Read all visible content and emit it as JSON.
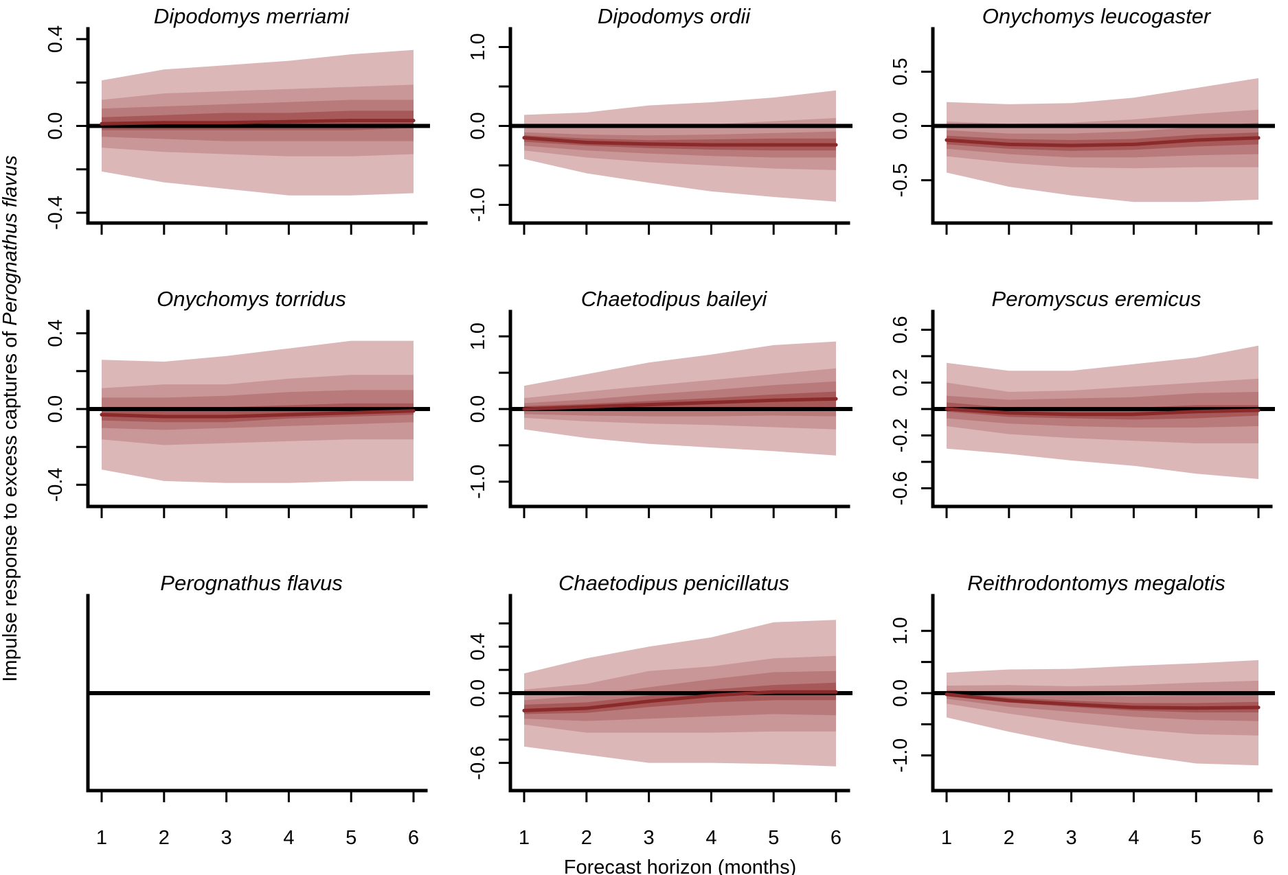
{
  "chart_data": {
    "type": "area",
    "layout": {
      "rows": 3,
      "cols": 3
    },
    "xlabel": "Forecast horizon (months)",
    "ylabel_prefix": "Impulse response to excess captures of ",
    "ylabel_species": "Perognathus flavus",
    "x": [
      1,
      2,
      3,
      4,
      5,
      6
    ],
    "xticks": [
      "1",
      "2",
      "3",
      "4",
      "5",
      "6"
    ],
    "colors": {
      "median": "#8b2a2a",
      "band_outer": "#dcb7b7",
      "band_2": "#c99797",
      "band_3": "#b87a7a",
      "band_inner": "#a75858"
    },
    "panels": [
      {
        "title": "Dipodomys merriami",
        "ylim": [
          -0.4,
          0.4
        ],
        "yticks": [
          -0.4,
          -0.2,
          0.0,
          0.2,
          0.4
        ],
        "yticklabels": [
          "-0.4",
          "",
          "0.0",
          "",
          "0.4"
        ],
        "median": [
          0.01,
          0.015,
          0.015,
          0.02,
          0.025,
          0.025
        ],
        "bands": [
          {
            "lower": [
              -0.21,
              -0.26,
              -0.29,
              -0.32,
              -0.32,
              -0.31
            ],
            "upper": [
              0.21,
              0.26,
              0.28,
              0.3,
              0.33,
              0.35
            ]
          },
          {
            "lower": [
              -0.1,
              -0.12,
              -0.13,
              -0.14,
              -0.14,
              -0.13
            ],
            "upper": [
              0.12,
              0.15,
              0.16,
              0.17,
              0.18,
              0.19
            ]
          },
          {
            "lower": [
              -0.05,
              -0.06,
              -0.07,
              -0.07,
              -0.07,
              -0.07
            ],
            "upper": [
              0.08,
              0.09,
              0.1,
              0.11,
              0.12,
              0.12
            ]
          },
          {
            "lower": [
              -0.02,
              -0.02,
              -0.02,
              -0.02,
              -0.02,
              -0.01
            ],
            "upper": [
              0.04,
              0.05,
              0.06,
              0.06,
              0.07,
              0.07
            ]
          }
        ]
      },
      {
        "title": "Dipodomys ordii",
        "ylim": [
          -1.1,
          1.1
        ],
        "yticks": [
          -1.0,
          -0.5,
          0.0,
          0.5,
          1.0
        ],
        "yticklabels": [
          "-1.0",
          "",
          "0.0",
          "",
          "1.0"
        ],
        "median": [
          -0.15,
          -0.21,
          -0.23,
          -0.24,
          -0.24,
          -0.24
        ],
        "bands": [
          {
            "lower": [
              -0.42,
              -0.6,
              -0.72,
              -0.83,
              -0.9,
              -0.96
            ],
            "upper": [
              0.14,
              0.17,
              0.26,
              0.3,
              0.36,
              0.45
            ]
          },
          {
            "lower": [
              -0.31,
              -0.4,
              -0.46,
              -0.5,
              -0.54,
              -0.56
            ],
            "upper": [
              0.0,
              -0.02,
              -0.02,
              0.02,
              0.06,
              0.1
            ]
          },
          {
            "lower": [
              -0.25,
              -0.31,
              -0.35,
              -0.38,
              -0.4,
              -0.4
            ],
            "upper": [
              -0.08,
              -0.11,
              -0.12,
              -0.11,
              -0.09,
              -0.07
            ]
          },
          {
            "lower": [
              -0.2,
              -0.25,
              -0.28,
              -0.3,
              -0.31,
              -0.31
            ],
            "upper": [
              -0.12,
              -0.16,
              -0.18,
              -0.17,
              -0.16,
              -0.16
            ]
          }
        ]
      },
      {
        "title": "Onychomys leucogaster",
        "ylim": [
          -0.8,
          0.8
        ],
        "yticks": [
          -0.5,
          0.0,
          0.5
        ],
        "yticklabels": [
          "-0.5",
          "0.0",
          "0.5"
        ],
        "median": [
          -0.13,
          -0.17,
          -0.18,
          -0.17,
          -0.13,
          -0.11
        ],
        "bands": [
          {
            "lower": [
              -0.43,
              -0.56,
              -0.64,
              -0.7,
              -0.7,
              -0.68
            ],
            "upper": [
              0.22,
              0.2,
              0.21,
              0.26,
              0.35,
              0.44
            ]
          },
          {
            "lower": [
              -0.28,
              -0.34,
              -0.38,
              -0.39,
              -0.38,
              -0.38
            ],
            "upper": [
              0.04,
              0.02,
              0.03,
              0.06,
              0.11,
              0.15
            ]
          },
          {
            "lower": [
              -0.21,
              -0.26,
              -0.29,
              -0.29,
              -0.27,
              -0.26
            ],
            "upper": [
              -0.04,
              -0.07,
              -0.07,
              -0.05,
              -0.01,
              0.03
            ]
          },
          {
            "lower": [
              -0.17,
              -0.21,
              -0.23,
              -0.22,
              -0.19,
              -0.17
            ],
            "upper": [
              -0.09,
              -0.12,
              -0.13,
              -0.12,
              -0.08,
              -0.06
            ]
          }
        ]
      },
      {
        "title": "Onychomys torridus",
        "ylim": [
          -0.46,
          0.46
        ],
        "yticks": [
          -0.4,
          -0.2,
          0.0,
          0.2,
          0.4
        ],
        "yticklabels": [
          "-0.4",
          "",
          "0.0",
          "",
          "0.4"
        ],
        "median": [
          -0.03,
          -0.04,
          -0.04,
          -0.03,
          -0.02,
          -0.01
        ],
        "bands": [
          {
            "lower": [
              -0.32,
              -0.38,
              -0.39,
              -0.39,
              -0.38,
              -0.38
            ],
            "upper": [
              0.26,
              0.25,
              0.28,
              0.32,
              0.36,
              0.36
            ]
          },
          {
            "lower": [
              -0.16,
              -0.19,
              -0.18,
              -0.17,
              -0.16,
              -0.16
            ],
            "upper": [
              0.11,
              0.13,
              0.13,
              0.16,
              0.18,
              0.18
            ]
          },
          {
            "lower": [
              -0.1,
              -0.11,
              -0.1,
              -0.09,
              -0.08,
              -0.07
            ],
            "upper": [
              0.06,
              0.06,
              0.07,
              0.09,
              0.1,
              0.1
            ]
          },
          {
            "lower": [
              -0.06,
              -0.07,
              -0.07,
              -0.05,
              -0.04,
              -0.03
            ],
            "upper": [
              0.01,
              0.0,
              0.01,
              0.02,
              0.03,
              0.03
            ]
          }
        ]
      },
      {
        "title": "Chaetodipus baileyi",
        "ylim": [
          -1.2,
          1.2
        ],
        "yticks": [
          -1.0,
          -0.5,
          0.0,
          0.5,
          1.0
        ],
        "yticklabels": [
          "-1.0",
          "",
          "0.0",
          "",
          "1.0"
        ],
        "median": [
          0.0,
          0.03,
          0.06,
          0.09,
          0.12,
          0.14
        ],
        "bands": [
          {
            "lower": [
              -0.28,
              -0.4,
              -0.48,
              -0.53,
              -0.58,
              -0.64
            ],
            "upper": [
              0.32,
              0.48,
              0.64,
              0.75,
              0.88,
              0.93
            ]
          },
          {
            "lower": [
              -0.12,
              -0.17,
              -0.2,
              -0.22,
              -0.25,
              -0.28
            ],
            "upper": [
              0.15,
              0.24,
              0.32,
              0.4,
              0.48,
              0.56
            ]
          },
          {
            "lower": [
              -0.07,
              -0.09,
              -0.1,
              -0.1,
              -0.09,
              -0.1
            ],
            "upper": [
              0.08,
              0.13,
              0.2,
              0.26,
              0.33,
              0.38
            ]
          },
          {
            "lower": [
              -0.02,
              -0.02,
              -0.01,
              0.0,
              0.02,
              0.03
            ],
            "upper": [
              0.04,
              0.07,
              0.11,
              0.15,
              0.2,
              0.24
            ]
          }
        ]
      },
      {
        "title": "Peromyscus eremicus",
        "ylim": [
          -0.66,
          0.66
        ],
        "yticks": [
          -0.6,
          -0.4,
          -0.2,
          0.0,
          0.2,
          0.4,
          0.6
        ],
        "yticklabels": [
          "-0.6",
          "",
          "-0.2",
          "",
          "0.2",
          "",
          "0.6"
        ],
        "median": [
          0.0,
          -0.03,
          -0.04,
          -0.04,
          -0.02,
          -0.01
        ],
        "bands": [
          {
            "lower": [
              -0.3,
              -0.34,
              -0.39,
              -0.43,
              -0.49,
              -0.53
            ],
            "upper": [
              0.35,
              0.29,
              0.29,
              0.34,
              0.39,
              0.48
            ]
          },
          {
            "lower": [
              -0.13,
              -0.19,
              -0.22,
              -0.24,
              -0.26,
              -0.26
            ],
            "upper": [
              0.2,
              0.13,
              0.14,
              0.17,
              0.2,
              0.23
            ]
          },
          {
            "lower": [
              -0.07,
              -0.11,
              -0.13,
              -0.14,
              -0.14,
              -0.13
            ],
            "upper": [
              0.1,
              0.07,
              0.08,
              0.09,
              0.12,
              0.13
            ]
          },
          {
            "lower": [
              -0.02,
              -0.06,
              -0.07,
              -0.08,
              -0.07,
              -0.05
            ],
            "upper": [
              0.05,
              0.01,
              0.01,
              0.01,
              0.03,
              0.03
            ]
          }
        ]
      },
      {
        "title": "Perognathus flavus",
        "ylim": [
          -1,
          1
        ],
        "yticks": [],
        "yticklabels": [],
        "median": [],
        "bands": []
      },
      {
        "title": "Chaetodipus penicillatus",
        "ylim": [
          -0.75,
          0.75
        ],
        "yticks": [
          -0.6,
          -0.4,
          -0.2,
          0.0,
          0.2,
          0.4,
          0.6
        ],
        "yticklabels": [
          "-0.6",
          "",
          "",
          "0.0",
          "",
          "0.4",
          ""
        ],
        "median": [
          -0.15,
          -0.13,
          -0.07,
          -0.02,
          0.01,
          0.01
        ],
        "bands": [
          {
            "lower": [
              -0.46,
              -0.53,
              -0.6,
              -0.6,
              -0.61,
              -0.63
            ],
            "upper": [
              0.17,
              0.3,
              0.4,
              0.48,
              0.61,
              0.63
            ]
          },
          {
            "lower": [
              -0.27,
              -0.34,
              -0.34,
              -0.34,
              -0.33,
              -0.33
            ],
            "upper": [
              0.03,
              0.08,
              0.19,
              0.23,
              0.3,
              0.32
            ]
          },
          {
            "lower": [
              -0.22,
              -0.24,
              -0.22,
              -0.2,
              -0.18,
              -0.19
            ],
            "upper": [
              -0.06,
              -0.02,
              0.05,
              0.12,
              0.18,
              0.19
            ]
          },
          {
            "lower": [
              -0.18,
              -0.17,
              -0.12,
              -0.08,
              -0.06,
              -0.06
            ],
            "upper": [
              -0.1,
              -0.08,
              -0.02,
              0.03,
              0.07,
              0.09
            ]
          }
        ]
      },
      {
        "title": "Reithrodontomys megalotis",
        "ylim": [
          -1.4,
          1.4
        ],
        "yticks": [
          -1.0,
          -0.5,
          0.0,
          0.5,
          1.0
        ],
        "yticklabels": [
          "-1.0",
          "",
          "0.0",
          "",
          "1.0"
        ],
        "median": [
          -0.02,
          -0.12,
          -0.18,
          -0.23,
          -0.24,
          -0.23
        ],
        "bands": [
          {
            "lower": [
              -0.39,
              -0.62,
              -0.82,
              -0.99,
              -1.13,
              -1.16
            ],
            "upper": [
              0.33,
              0.38,
              0.39,
              0.44,
              0.48,
              0.53
            ]
          },
          {
            "lower": [
              -0.17,
              -0.33,
              -0.47,
              -0.58,
              -0.66,
              -0.68
            ],
            "upper": [
              0.12,
              0.13,
              0.11,
              0.13,
              0.17,
              0.2
            ]
          },
          {
            "lower": [
              -0.09,
              -0.22,
              -0.3,
              -0.38,
              -0.43,
              -0.45
            ],
            "upper": [
              0.05,
              0.01,
              -0.03,
              -0.05,
              -0.03,
              -0.01
            ]
          },
          {
            "lower": [
              -0.05,
              -0.15,
              -0.22,
              -0.28,
              -0.31,
              -0.31
            ],
            "upper": [
              0.01,
              -0.07,
              -0.12,
              -0.16,
              -0.16,
              -0.14
            ]
          }
        ]
      }
    ]
  }
}
